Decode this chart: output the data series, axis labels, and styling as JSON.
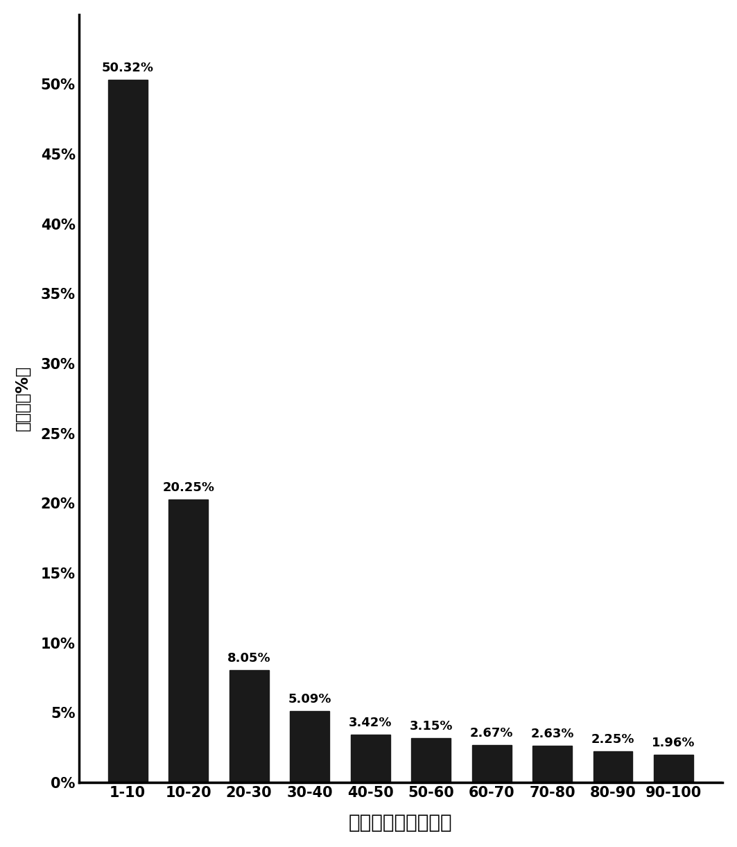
{
  "categories": [
    "1-10",
    "10-20",
    "20-30",
    "30-40",
    "40-50",
    "50-60",
    "60-70",
    "70-80",
    "80-90",
    "90-100"
  ],
  "values": [
    50.32,
    20.25,
    8.05,
    5.09,
    3.42,
    3.15,
    2.67,
    2.63,
    2.25,
    1.96
  ],
  "bar_color": "#1a1a1a",
  "background_color": "#ffffff",
  "xlabel": "制动踏板开度百分比",
  "ylabel": "频分比（%）",
  "ylim": [
    0,
    55
  ],
  "yticks": [
    0,
    5,
    10,
    15,
    20,
    25,
    30,
    35,
    40,
    45,
    50
  ],
  "ytick_labels": [
    "0%",
    "5%",
    "10%",
    "15%",
    "20%",
    "25%",
    "30%",
    "35%",
    "40%",
    "45%",
    "50%"
  ],
  "bar_label_fontsize": 13,
  "xlabel_fontsize": 20,
  "ylabel_fontsize": 17,
  "tick_fontsize": 15,
  "bar_width": 0.65
}
